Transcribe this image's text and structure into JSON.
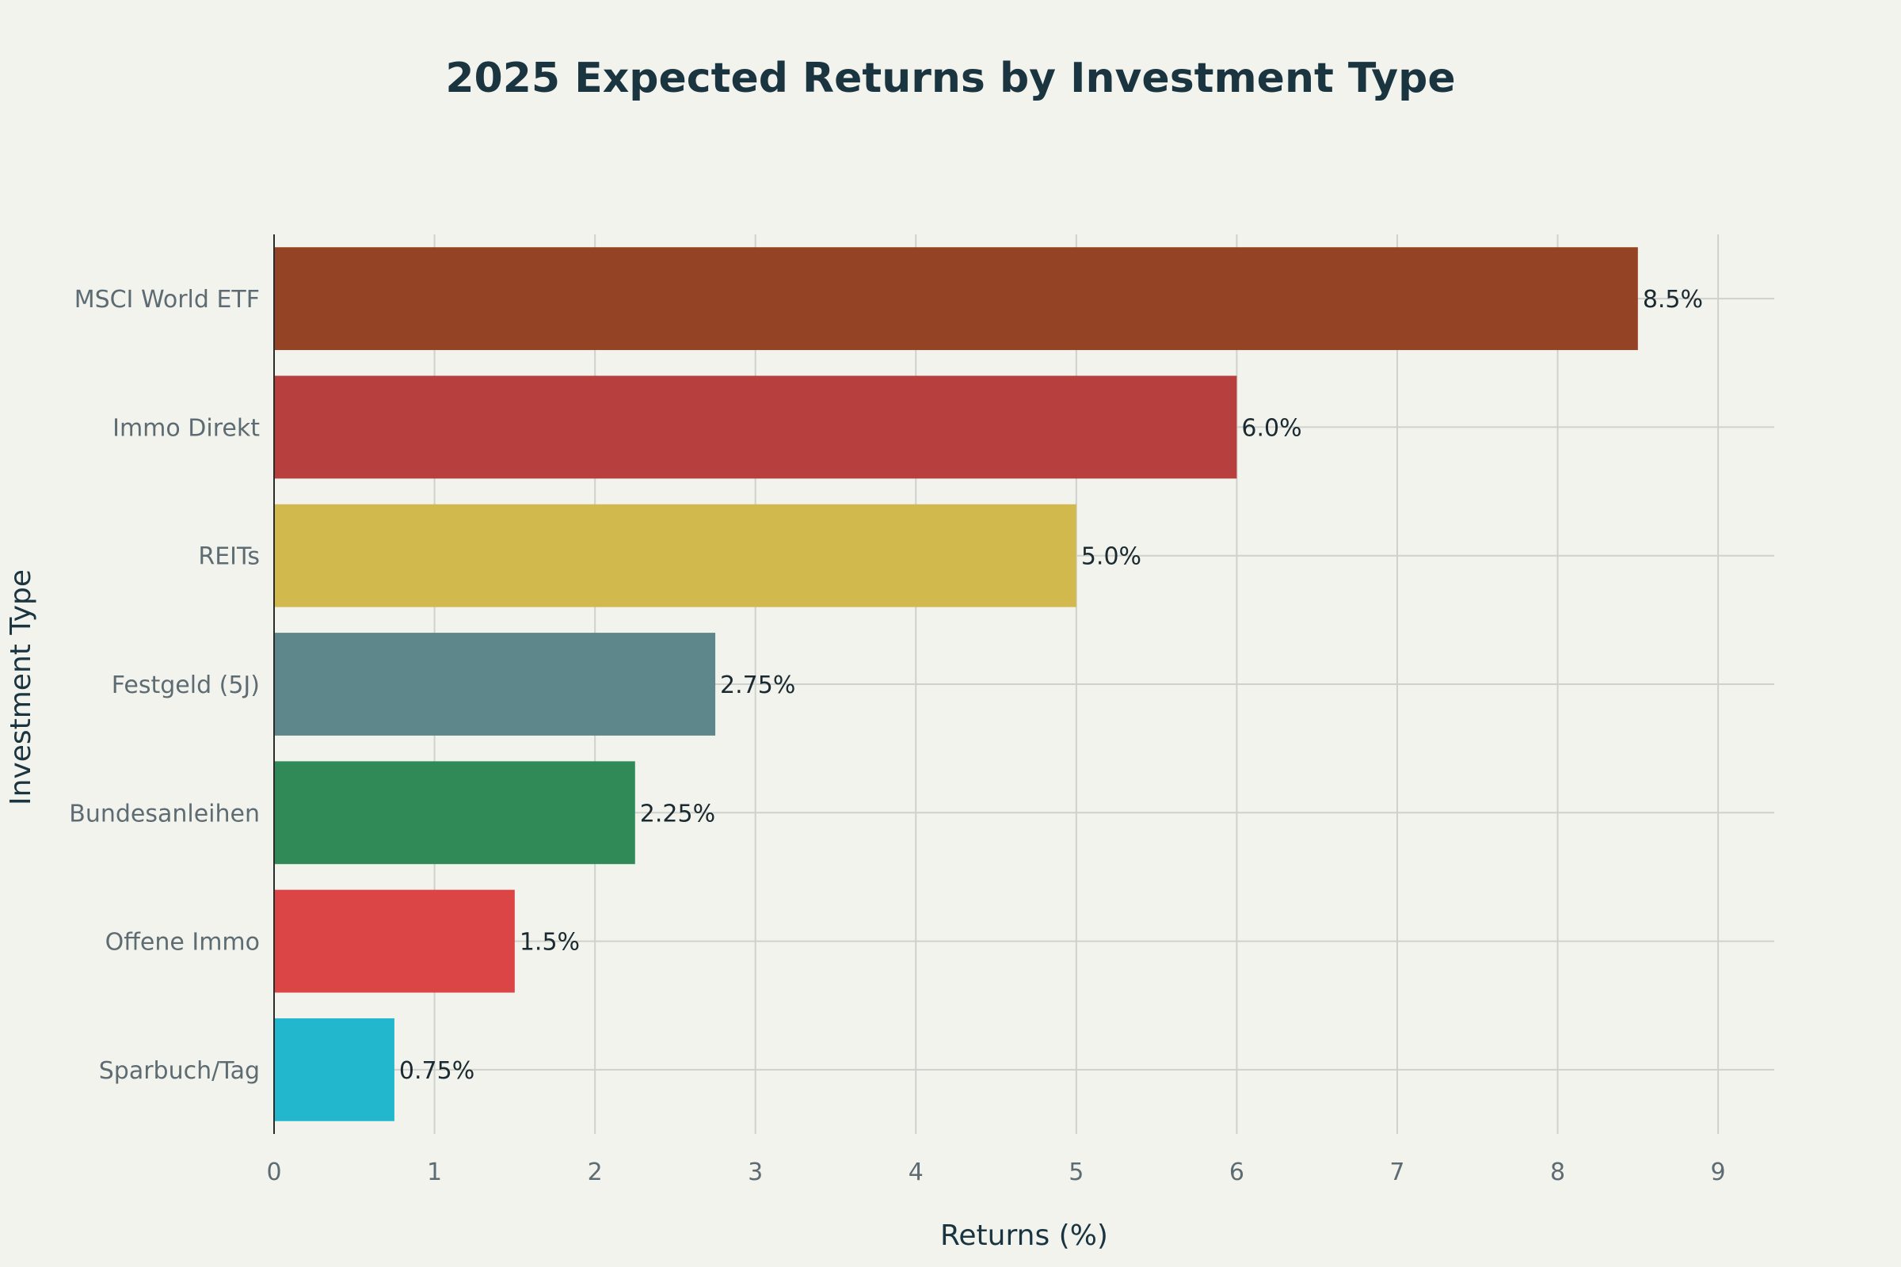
{
  "chart_data": {
    "type": "bar",
    "orientation": "horizontal",
    "title": "2025 Expected Returns by Investment Type",
    "xlabel": "Returns (%)",
    "ylabel": "Investment Type",
    "xlim": [
      0,
      9.35
    ],
    "xticks": [
      0,
      1,
      2,
      3,
      4,
      5,
      6,
      7,
      8,
      9
    ],
    "grid": true,
    "legend": "none",
    "categories": [
      "MSCI World ETF",
      "Immo Direkt",
      "REITs",
      "Festgeld (5J)",
      "Bundesanleihen",
      "Offene Immo",
      "Sparbuch/Tag"
    ],
    "values": [
      8.5,
      6.0,
      5.0,
      2.75,
      2.25,
      1.5,
      0.75
    ],
    "data_labels": [
      "8.5%",
      "6.0%",
      "5.0%",
      "2.75%",
      "2.25%",
      "1.5%",
      "0.75%"
    ],
    "colors": [
      "#954325",
      "#b7403f",
      "#d2b94d",
      "#5e878c",
      "#2f8a58",
      "#dc4546",
      "#22b7cd"
    ]
  }
}
